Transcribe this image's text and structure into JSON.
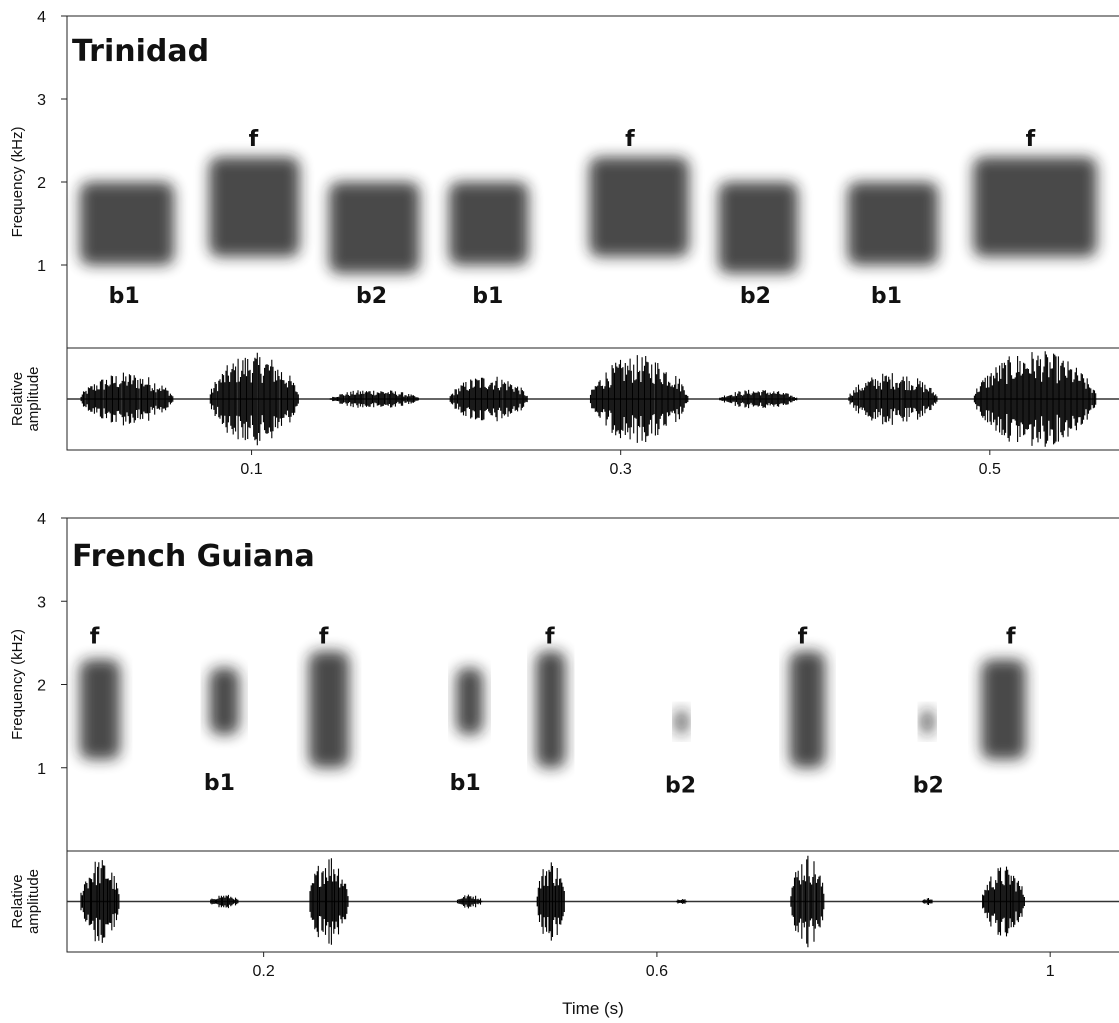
{
  "chart_data": [
    {
      "type": "spectrogram",
      "title": "Trinidad",
      "ylabel": "Frequency (kHz)",
      "amplitude_label": [
        "Relative",
        "amplitude"
      ],
      "ylim": [
        0,
        4
      ],
      "yticks": [
        1,
        2,
        3,
        4
      ],
      "xlim": [
        0,
        0.57
      ],
      "xticks": [
        0.1,
        0.3,
        0.5
      ],
      "syllables": [
        {
          "label": "b1",
          "start": 0.007,
          "end": 0.058,
          "low": 1.0,
          "high": 2.0,
          "amplitude": 0.55,
          "label_x": 0.031,
          "label_y": 0.64
        },
        {
          "label": "f",
          "start": 0.077,
          "end": 0.126,
          "low": 1.1,
          "high": 2.3,
          "amplitude": 0.95,
          "label_x": 0.101,
          "label_y": 2.53
        },
        {
          "label": "b2",
          "start": 0.142,
          "end": 0.191,
          "low": 0.9,
          "high": 2.0,
          "amplitude": 0.2,
          "label_x": 0.165,
          "label_y": 0.64
        },
        {
          "label": "b1",
          "start": 0.207,
          "end": 0.25,
          "low": 1.0,
          "high": 2.0,
          "amplitude": 0.5,
          "label_x": 0.228,
          "label_y": 0.64
        },
        {
          "label": "f",
          "start": 0.283,
          "end": 0.337,
          "low": 1.1,
          "high": 2.3,
          "amplitude": 0.9,
          "label_x": 0.305,
          "label_y": 2.53
        },
        {
          "label": "b2",
          "start": 0.353,
          "end": 0.396,
          "low": 0.9,
          "high": 2.0,
          "amplitude": 0.2,
          "label_x": 0.373,
          "label_y": 0.64
        },
        {
          "label": "b1",
          "start": 0.423,
          "end": 0.472,
          "low": 1.0,
          "high": 2.0,
          "amplitude": 0.55,
          "label_x": 0.444,
          "label_y": 0.64
        },
        {
          "label": "f",
          "start": 0.491,
          "end": 0.558,
          "low": 1.1,
          "high": 2.3,
          "amplitude": 1.0,
          "label_x": 0.522,
          "label_y": 2.53
        }
      ]
    },
    {
      "type": "spectrogram",
      "title": "French Guiana",
      "ylabel": "Frequency (kHz)",
      "amplitude_label": [
        "Relative",
        "amplitude"
      ],
      "xlabel": "Time (s)",
      "ylim": [
        0,
        4
      ],
      "yticks": [
        1,
        2,
        3,
        4
      ],
      "xlim": [
        0,
        1.07
      ],
      "xticks": [
        0.2,
        0.6,
        1.0
      ],
      "syllables": [
        {
          "label": "f",
          "start": 0.013,
          "end": 0.054,
          "low": 1.1,
          "high": 2.3,
          "amplitude": 0.9,
          "label_x": 0.028,
          "label_y": 2.59
        },
        {
          "label": "b1",
          "start": 0.145,
          "end": 0.175,
          "low": 1.4,
          "high": 2.2,
          "amplitude": 0.15,
          "label_x": 0.155,
          "label_y": 0.83
        },
        {
          "label": "f",
          "start": 0.246,
          "end": 0.287,
          "low": 1.0,
          "high": 2.4,
          "amplitude": 1.0,
          "label_x": 0.261,
          "label_y": 2.59
        },
        {
          "label": "b1",
          "start": 0.396,
          "end": 0.423,
          "low": 1.4,
          "high": 2.2,
          "amplitude": 0.15,
          "label_x": 0.405,
          "label_y": 0.83
        },
        {
          "label": "f",
          "start": 0.477,
          "end": 0.507,
          "low": 1.0,
          "high": 2.4,
          "amplitude": 0.9,
          "label_x": 0.491,
          "label_y": 2.59
        },
        {
          "label": "b2",
          "start": 0.619,
          "end": 0.631,
          "low": 1.4,
          "high": 1.7,
          "amplitude": 0.08,
          "label_x": 0.624,
          "label_y": 0.8
        },
        {
          "label": "f",
          "start": 0.735,
          "end": 0.771,
          "low": 1.0,
          "high": 2.4,
          "amplitude": 1.0,
          "label_x": 0.748,
          "label_y": 2.59
        },
        {
          "label": "b2",
          "start": 0.869,
          "end": 0.881,
          "low": 1.4,
          "high": 1.7,
          "amplitude": 0.08,
          "label_x": 0.876,
          "label_y": 0.8
        },
        {
          "label": "f",
          "start": 0.93,
          "end": 0.975,
          "low": 1.1,
          "high": 2.3,
          "amplitude": 0.75,
          "label_x": 0.96,
          "label_y": 2.59
        }
      ]
    }
  ]
}
